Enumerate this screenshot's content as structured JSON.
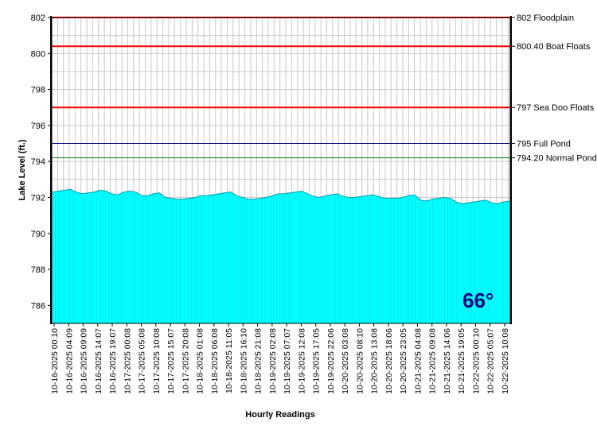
{
  "chart_data": {
    "type": "area",
    "xlabel": "Hourly Readings",
    "ylabel": "Lake Level (ft.)",
    "ylim": [
      785,
      802
    ],
    "yticks": [
      786,
      788,
      790,
      792,
      794,
      796,
      798,
      800,
      802
    ],
    "grid": true,
    "fill_color": "#00ffff",
    "x_tick_labels": [
      "10-16-2025 00:10",
      "10-16-2025 04:09",
      "10-16-2025 09:09",
      "10-16-2025 14:07",
      "10-16-2025 19:07",
      "10-17-2025 00:08",
      "10-17-2025 05:08",
      "10-17-2025 10:08",
      "10-17-2025 15:07",
      "10-17-2025 20:08",
      "10-18-2025 01:08",
      "10-18-2025 06:08",
      "10-18-2025 11:05",
      "10-18-2025 16:10",
      "10-18-2025 21:08",
      "10-19-2025 02:08",
      "10-19-2025 07:07",
      "10-19-2025 12:08",
      "10-19-2025 17:05",
      "10-19-2025 22:06",
      "10-20-2025 03:08",
      "10-20-2025 08:10",
      "10-20-2025 13:08",
      "10-20-2025 18:06",
      "10-20-2025 23:05",
      "10-21-2025 04:08",
      "10-21-2025 09:08",
      "10-21-2025 14:06",
      "10-21-2025 19:05",
      "10-22-2025 00:10",
      "10-22-2025 05:07",
      "10-22-2025 10:08"
    ],
    "series": [
      {
        "values": [
          792.3,
          792.35,
          792.4,
          792.45,
          792.3,
          792.2,
          792.25,
          792.3,
          792.4,
          792.35,
          792.2,
          792.15,
          792.3,
          792.35,
          792.3,
          792.1,
          792.1,
          792.2,
          792.25,
          792.0,
          791.95,
          791.9,
          791.9,
          791.95,
          792.0,
          792.1,
          792.1,
          792.15,
          792.2,
          792.25,
          792.3,
          792.1,
          792.0,
          791.9,
          791.9,
          791.95,
          792.0,
          792.1,
          792.2,
          792.2,
          792.25,
          792.3,
          792.35,
          792.2,
          792.05,
          792.0,
          792.1,
          792.15,
          792.2,
          792.05,
          792.0,
          792.0,
          792.05,
          792.1,
          792.15,
          792.05,
          791.95,
          791.95,
          791.95,
          792.0,
          792.1,
          792.15,
          791.85,
          791.8,
          791.9,
          791.95,
          792.0,
          791.95,
          791.75,
          791.65,
          791.7,
          791.75,
          791.8,
          791.85,
          791.7,
          791.65,
          791.75,
          791.8
        ]
      }
    ],
    "reference_lines": [
      {
        "value": 802,
        "label": "802 Floodplain",
        "color": "#ff0000"
      },
      {
        "value": 800.4,
        "label": "800.40 Boat Floats",
        "color": "#ff0000"
      },
      {
        "value": 797,
        "label": "797 Sea Doo Floats",
        "color": "#ff0000"
      },
      {
        "value": 795,
        "label": "795 Full Pond",
        "color": "#000080"
      },
      {
        "value": 794.2,
        "label": "794.20 Normal Pond",
        "color": "#008000"
      }
    ],
    "annotation": {
      "text": "66°",
      "color": "#000080"
    }
  }
}
